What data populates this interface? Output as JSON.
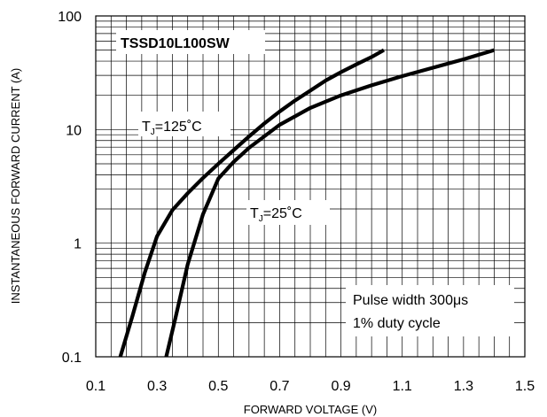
{
  "chart_data": {
    "type": "line",
    "title": "",
    "xlabel": "FORWARD VOLTAGE (V)",
    "ylabel": "INSTANTANEOUS FORWARD CURRENT (A)",
    "x_scale": "linear",
    "y_scale": "log",
    "xlim": [
      0.1,
      1.5
    ],
    "ylim": [
      0.1,
      100
    ],
    "x_ticks": [
      "0.1",
      "0.3",
      "0.5",
      "0.7",
      "0.9",
      "1.1",
      "1.3",
      "1.5"
    ],
    "y_ticks": [
      "0.1",
      "1",
      "10",
      "100"
    ],
    "grid": true,
    "annotations": {
      "part_number": "TSSD10L100SW",
      "curve_high_prefix": "T",
      "curve_high_sub": "J",
      "curve_high_suffix": "=125˚C",
      "curve_low_prefix": "T",
      "curve_low_sub": "J",
      "curve_low_suffix": "=25˚C",
      "note_line1": "Pulse width 300μs",
      "note_line2": "1% duty cycle"
    },
    "series": [
      {
        "name": "TJ=125˚C",
        "x": [
          0.18,
          0.22,
          0.26,
          0.3,
          0.35,
          0.4,
          0.45,
          0.5,
          0.55,
          0.6,
          0.65,
          0.7,
          0.75,
          0.8,
          0.85,
          0.9,
          0.95,
          1.0,
          1.04
        ],
        "y": [
          0.1,
          0.23,
          0.55,
          1.15,
          1.95,
          2.75,
          3.75,
          5.0,
          6.6,
          8.7,
          11.3,
          14.4,
          18.0,
          22.0,
          27.0,
          32.0,
          37.5,
          43.5,
          50
        ]
      },
      {
        "name": "TJ=25˚C",
        "x": [
          0.33,
          0.36,
          0.4,
          0.45,
          0.5,
          0.55,
          0.6,
          0.7,
          0.8,
          0.9,
          1.0,
          1.1,
          1.2,
          1.3,
          1.4
        ],
        "y": [
          0.1,
          0.22,
          0.65,
          1.8,
          3.7,
          5.2,
          6.9,
          11.0,
          15.5,
          20.0,
          24.5,
          29.5,
          35.0,
          41.5,
          50
        ]
      }
    ]
  }
}
